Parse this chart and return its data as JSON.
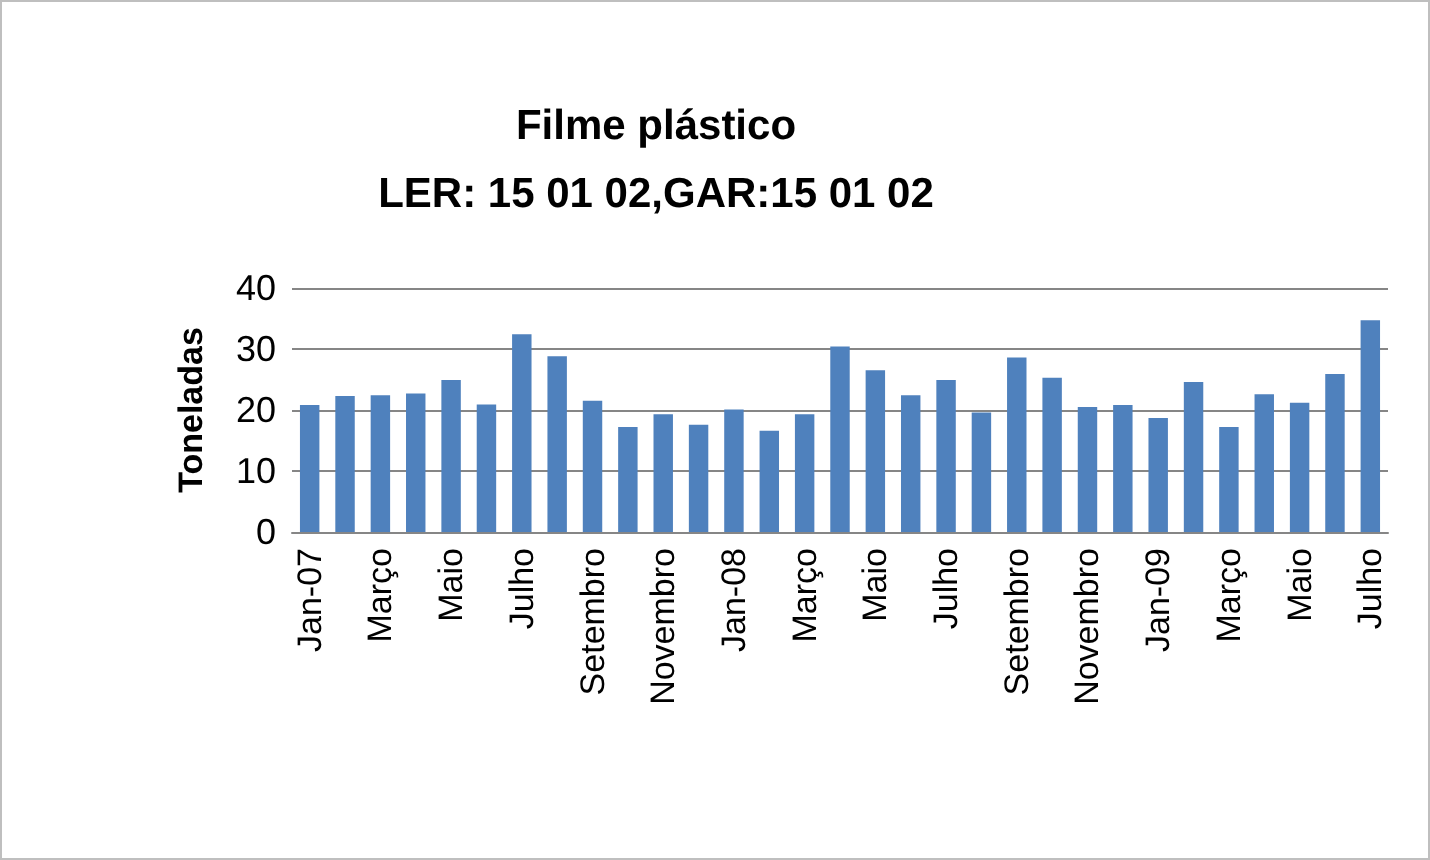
{
  "chart_data": {
    "type": "bar",
    "title": "Filme plástico\nLER: 15 01 02,GAR:15 01 02",
    "ylabel": "Toneladas",
    "categories": [
      "Jan-07",
      null,
      "Março",
      null,
      "Maio",
      null,
      "Julho",
      null,
      "Setembro",
      null,
      "Novembro",
      null,
      "Jan-08",
      null,
      "Março",
      null,
      "Maio",
      null,
      "Julho",
      null,
      "Setembro",
      null,
      "Novembro",
      null,
      "Jan-09",
      null,
      "Março",
      null,
      "Maio",
      null,
      "Julho"
    ],
    "values": [
      20.8,
      22.3,
      22.4,
      22.7,
      24.9,
      20.9,
      32.4,
      28.8,
      21.5,
      17.2,
      19.3,
      17.6,
      20.1,
      16.6,
      19.3,
      30.4,
      26.5,
      22.4,
      24.9,
      19.6,
      28.6,
      25.3,
      20.5,
      20.8,
      18.7,
      24.6,
      17.2,
      22.6,
      21.2,
      25.9,
      34.7
    ],
    "color": "#4f81bd",
    "ylim": [
      0,
      40
    ],
    "yticks": [
      0,
      10,
      20,
      30,
      40
    ],
    "grid": "y"
  }
}
